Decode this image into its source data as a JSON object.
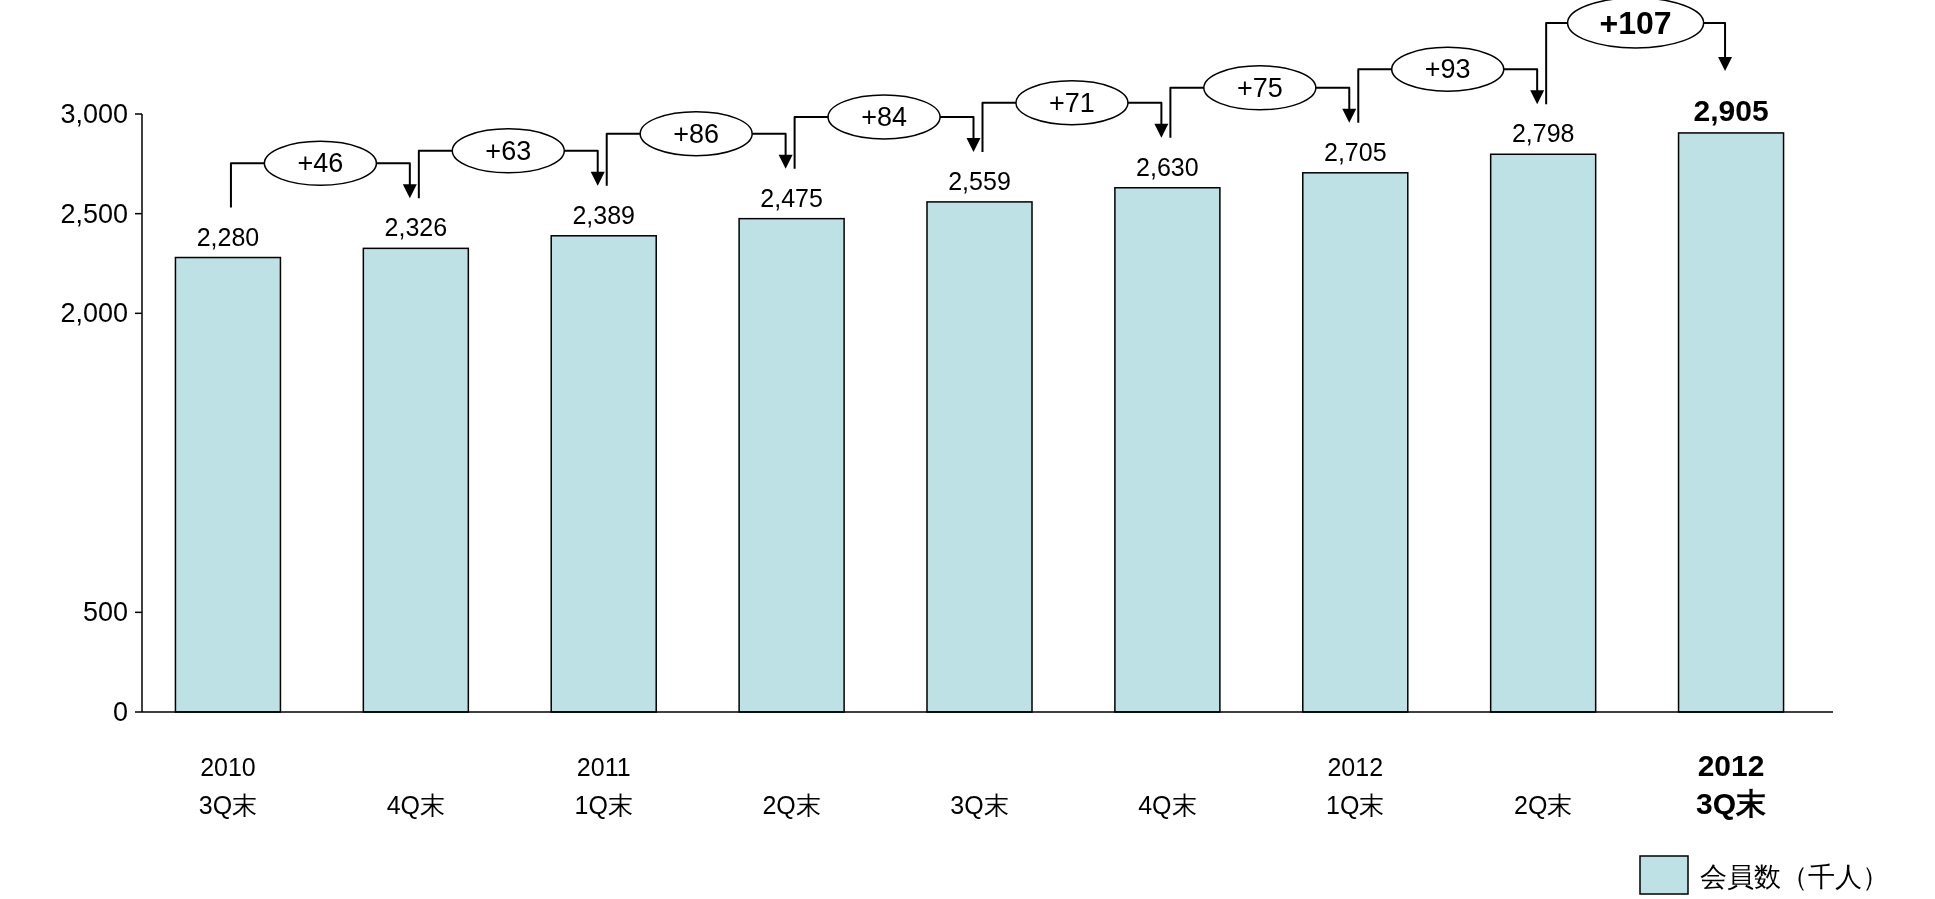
{
  "chart_data": {
    "type": "bar",
    "categories": [
      "2010\n3Q末",
      "4Q末",
      "2011\n1Q末",
      "2Q末",
      "3Q末",
      "4Q末",
      "2012\n1Q末",
      "2Q末",
      "2012\n3Q末"
    ],
    "series": [
      {
        "name": "会員数（千人）",
        "color": "#bde1e4",
        "values": [
          2280,
          2326,
          2389,
          2475,
          2559,
          2630,
          2705,
          2798,
          2905
        ],
        "value_labels": [
          "2,280",
          "2,326",
          "2,389",
          "2,475",
          "2,559",
          "2,630",
          "2,705",
          "2,798",
          "2,905"
        ]
      }
    ],
    "ylim": [
      0,
      3000
    ],
    "yticks": [
      {
        "value": 0,
        "label": "0"
      },
      {
        "value": 500,
        "label": "500"
      },
      {
        "value": 2000,
        "label": "2,000"
      },
      {
        "value": 2500,
        "label": "2,500"
      },
      {
        "value": 3000,
        "label": "3,000"
      }
    ],
    "annotations": [
      "+46",
      "+63",
      "+86",
      "+84",
      "+71",
      "+75",
      "+93",
      "+107"
    ],
    "legend": "bottom right",
    "grid": false
  }
}
